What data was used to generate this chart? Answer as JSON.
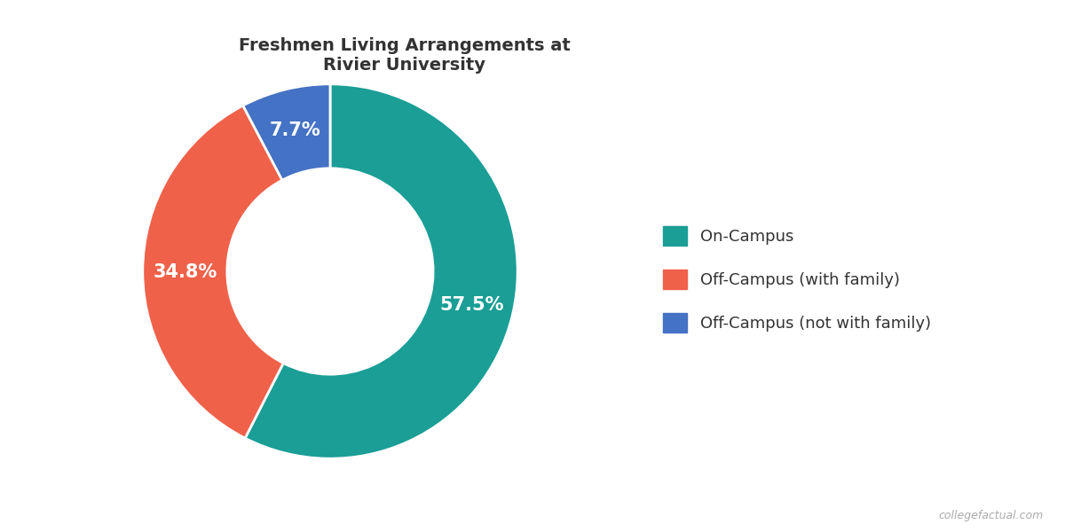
{
  "title": "Freshmen Living Arrangements at\nRivier University",
  "labels": [
    "On-Campus",
    "Off-Campus (with family)",
    "Off-Campus (not with family)"
  ],
  "values": [
    57.5,
    34.8,
    7.7
  ],
  "colors": [
    "#1a9e96",
    "#f0614a",
    "#4472c4"
  ],
  "pct_labels": [
    "57.5%",
    "34.8%",
    "7.7%"
  ],
  "pct_label_colors": [
    "white",
    "white",
    "white"
  ],
  "donut_width": 0.45,
  "title_fontsize": 14,
  "legend_fontsize": 13,
  "pct_fontsize": 15,
  "background_color": "#ffffff",
  "watermark": "collegefactual.com"
}
